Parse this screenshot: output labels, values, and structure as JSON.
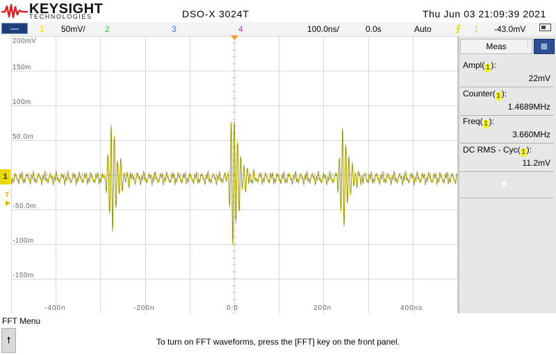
{
  "header": {
    "brand": "KEYSIGHT",
    "brand_sub": "TECHNOLOGIES",
    "model": "DSO-X 3024T",
    "datetime": "Thu Jun 03 21:09:39 2021"
  },
  "channel_bar": {
    "ch1_num": "1",
    "ch1_scale": "50mV/",
    "ch2_num": "2",
    "ch3_num": "3",
    "ch4_num": "4",
    "timebase": "100.0ns/",
    "delay": "0.0s",
    "trigger_mode": "Auto",
    "trigger_source": "1",
    "trigger_level": "-43.0mV",
    "ch1_color": "#f0e000",
    "ch2_color": "#33cc33",
    "ch3_color": "#3377ff",
    "ch4_color": "#dd22cc"
  },
  "graticule": {
    "y_labels": [
      "200mV",
      "150m",
      "100m",
      "50.0m",
      "-50.0m",
      "-100m",
      "-150m"
    ],
    "x_labels": [
      "-400n",
      "-200n",
      "0.0",
      "200n",
      "400ns"
    ],
    "trace_color": "#e8e000"
  },
  "side_panel": {
    "tab_label": "Meas",
    "icon": "grid-icon",
    "measurements": [
      {
        "name_prefix": "Ampl(",
        "source": "1",
        "name_suffix": "):",
        "value": "22mV"
      },
      {
        "name_prefix": "Counter(",
        "source": "1",
        "name_suffix": "):",
        "value": "1.4689MHz"
      },
      {
        "name_prefix": "Freq(",
        "source": "1",
        "name_suffix": "):",
        "value": "3.660MHz"
      },
      {
        "name_prefix": "DC RMS - Cyc(",
        "source": "1",
        "name_suffix": "):",
        "value": "11.2mV"
      }
    ],
    "add_label": "+"
  },
  "footer": {
    "menu_title": "FFT Menu",
    "up_icon": "up-arrow-icon",
    "hint": "To turn on FFT waveforms, press the [FFT] key on the front panel."
  }
}
